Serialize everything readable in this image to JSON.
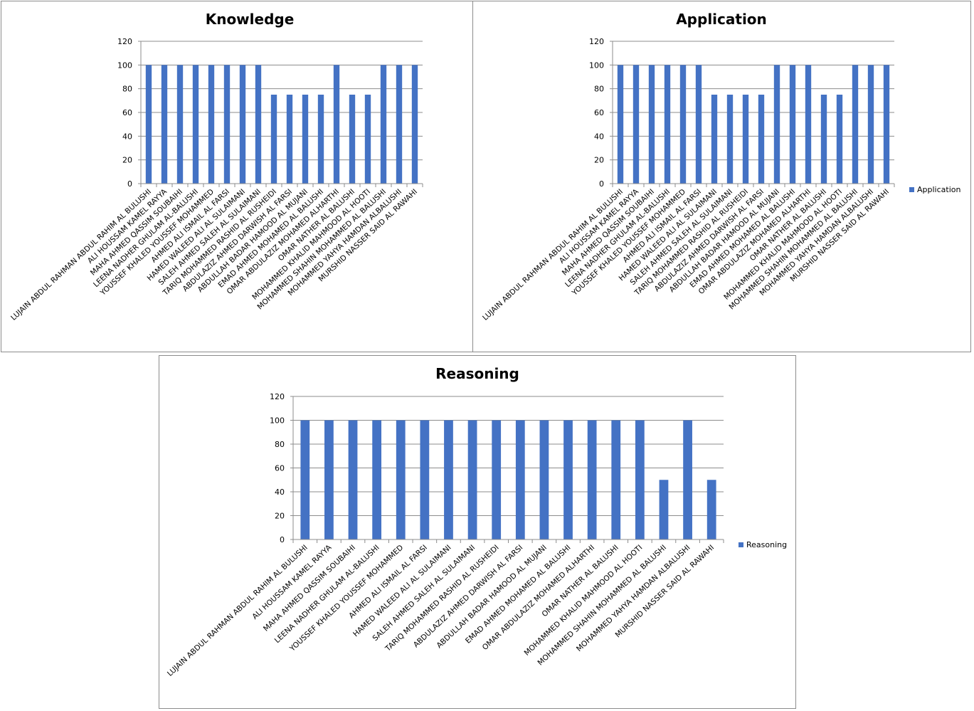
{
  "chart_data": [
    {
      "type": "bar",
      "title": "Knowledge",
      "xlabel": "",
      "ylabel": "",
      "ylim": [
        0,
        120
      ],
      "yticks": [
        "0",
        "20",
        "40",
        "60",
        "80",
        "100",
        "120"
      ],
      "grid": true,
      "legend": null,
      "categories": [
        "LUJAIN ABDUL RAHMAN ABDUL RAHIM AL BULUSHI",
        "ALI HOUSSAM KAMEL RAYYA",
        "MAHA AHMED QASSIM SOUBAIHI",
        "LEENA NADHER GHULAM AL-BALUSHI",
        "YOUSSEF KHALED YOUSSEF MOHAMMED",
        "AHMED ALI ISMAIL AL FARSI",
        "HAMED WALEED ALI AL SULAIMANI",
        "SALEH AHMED SALEH AL SULAIMANI",
        "TARIQ MOHAMMED RASHID AL RUSHEIDI",
        "ABDULAZIZ AHMED DARWISH AL FARSI",
        "ABDULLAH BADAR HAMOOD AL MUJANI",
        "EMAD AHMED MOHAMED AL BALUSHI",
        "OMAR ABDULAZIZ MOHAMED ALHARTHI",
        "OMAR NATHER AL BALUSHI",
        "MOHAMMED KHALID MAHMOOD AL HOOTI",
        "MOHAMMED SHAHIN MOHAMMED AL BALUSHI",
        "MOHAMMED YAHYA HAMDAN ALBALUSHI",
        "MURSHID NASSER SAID AL RAWAHI"
      ],
      "series": [
        {
          "name": "Knowledge",
          "color": "#4472c4",
          "values": [
            100,
            100,
            100,
            100,
            100,
            100,
            100,
            100,
            75,
            75,
            75,
            75,
            100,
            75,
            75,
            100,
            100,
            100
          ]
        }
      ]
    },
    {
      "type": "bar",
      "title": "Application",
      "xlabel": "",
      "ylabel": "",
      "ylim": [
        0,
        120
      ],
      "yticks": [
        "0",
        "20",
        "40",
        "60",
        "80",
        "100",
        "120"
      ],
      "grid": true,
      "legend": "right",
      "categories": [
        "LUJAIN ABDUL RAHMAN ABDUL RAHIM AL BULUSHI",
        "ALI HOUSSAM KAMEL RAYYA",
        "MAHA AHMED QASSIM SOUBAIHI",
        "LEENA NADHER GHULAM AL-BALUSHI",
        "YOUSSEF KHALED YOUSSEF MOHAMMED",
        "AHMED ALI ISMAIL AL FARSI",
        "HAMED WALEED ALI AL SULAIMANI",
        "SALEH AHMED SALEH AL SULAIMANI",
        "TARIQ MOHAMMED RASHID AL RUSHEIDI",
        "ABDULAZIZ AHMED DARWISH AL FARSI",
        "ABDULLAH BADAR HAMOOD AL MUJANI",
        "EMAD AHMED MOHAMED AL BALUSHI",
        "OMAR ABDULAZIZ MOHAMED ALHARTHI",
        "OMAR NATHER AL BALUSHI",
        "MOHAMMED KHALID MAHMOOD AL HOOTI",
        "MOHAMMED SHAHIN MOHAMMED AL BALUSHI",
        "MOHAMMED YAHYA HAMDAN ALBALUSHI",
        "MURSHID NASSER SAID AL RAWAHI"
      ],
      "series": [
        {
          "name": "Application",
          "color": "#4472c4",
          "values": [
            100,
            100,
            100,
            100,
            100,
            100,
            75,
            75,
            75,
            75,
            100,
            100,
            100,
            75,
            75,
            100,
            100,
            100
          ]
        }
      ]
    },
    {
      "type": "bar",
      "title": "Reasoning",
      "xlabel": "",
      "ylabel": "",
      "ylim": [
        0,
        120
      ],
      "yticks": [
        "0",
        "20",
        "40",
        "60",
        "80",
        "100",
        "120"
      ],
      "grid": true,
      "legend": "right",
      "categories": [
        "LUJAIN ABDUL RAHMAN ABDUL RAHIM AL BULUSHI",
        "ALI HOUSSAM KAMEL RAYYA",
        "MAHA AHMED QASSIM SOUBAIHI",
        "LEENA NADHER GHULAM AL-BALUSHI",
        "YOUSSEF KHALED YOUSSEF MOHAMMED",
        "AHMED ALI ISMAIL AL FARSI",
        "HAMED WALEED ALI AL SULAIMANI",
        "SALEH AHMED SALEH AL SULAIMANI",
        "TARIQ MOHAMMED RASHID AL RUSHEIDI",
        "ABDULAZIZ AHMED DARWISH AL FARSI",
        "ABDULLAH BADAR HAMOOD AL MUJANI",
        "EMAD AHMED MOHAMED AL BALUSHI",
        "OMAR ABDULAZIZ MOHAMED ALHARTHI",
        "OMAR NATHER AL BALUSHI",
        "MOHAMMED KHALID MAHMOOD AL HOOTI",
        "MOHAMMED SHAHIN MOHAMMED AL BALUSHI",
        "MOHAMMED YAHYA HAMDAN ALBALUSHI",
        "MURSHID NASSER SAID AL RAWAHI"
      ],
      "series": [
        {
          "name": "Reasoning",
          "color": "#4472c4",
          "values": [
            100,
            100,
            100,
            100,
            100,
            100,
            100,
            100,
            100,
            100,
            100,
            100,
            100,
            100,
            100,
            50,
            100,
            50
          ]
        }
      ]
    }
  ]
}
